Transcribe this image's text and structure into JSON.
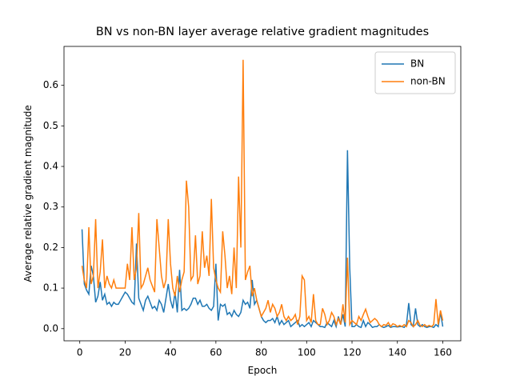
{
  "chart_data": {
    "type": "line",
    "title": "BN vs non-BN layer average relative gradient magnitudes",
    "x_label": "Epoch",
    "y_label": "Average relative gradient magnitude",
    "x": [
      1,
      2,
      3,
      4,
      5,
      6,
      7,
      8,
      9,
      10,
      11,
      12,
      13,
      14,
      15,
      16,
      17,
      18,
      19,
      20,
      21,
      22,
      23,
      24,
      25,
      26,
      27,
      28,
      29,
      30,
      31,
      32,
      33,
      34,
      35,
      36,
      37,
      38,
      39,
      40,
      41,
      42,
      43,
      44,
      45,
      46,
      47,
      48,
      49,
      50,
      51,
      52,
      53,
      54,
      55,
      56,
      57,
      58,
      59,
      60,
      61,
      62,
      63,
      64,
      65,
      66,
      67,
      68,
      69,
      70,
      71,
      72,
      73,
      74,
      75,
      76,
      77,
      78,
      79,
      80,
      81,
      82,
      83,
      84,
      85,
      86,
      87,
      88,
      89,
      90,
      91,
      92,
      93,
      94,
      95,
      96,
      97,
      98,
      99,
      100,
      101,
      102,
      103,
      104,
      105,
      106,
      107,
      108,
      109,
      110,
      111,
      112,
      113,
      114,
      115,
      116,
      117,
      118,
      119,
      120,
      121,
      122,
      123,
      124,
      125,
      126,
      127,
      128,
      129,
      130,
      131,
      132,
      133,
      134,
      135,
      136,
      137,
      138,
      139,
      140,
      141,
      142,
      143,
      144,
      145,
      146,
      147,
      148,
      149,
      150,
      151,
      152,
      153,
      154,
      155,
      156,
      157,
      158,
      159,
      160
    ],
    "series": [
      {
        "name": "BN",
        "color": "#1f77b4",
        "values": [
          0.245,
          0.11,
          0.095,
          0.085,
          0.155,
          0.13,
          0.065,
          0.08,
          0.115,
          0.07,
          0.085,
          0.06,
          0.065,
          0.055,
          0.065,
          0.06,
          0.06,
          0.07,
          0.08,
          0.09,
          0.085,
          0.075,
          0.065,
          0.06,
          0.21,
          0.075,
          0.06,
          0.045,
          0.07,
          0.08,
          0.065,
          0.05,
          0.055,
          0.045,
          0.07,
          0.06,
          0.04,
          0.075,
          0.11,
          0.07,
          0.05,
          0.09,
          0.04,
          0.145,
          0.045,
          0.05,
          0.045,
          0.05,
          0.06,
          0.075,
          0.075,
          0.06,
          0.07,
          0.055,
          0.055,
          0.06,
          0.05,
          0.045,
          0.055,
          0.16,
          0.02,
          0.06,
          0.055,
          0.06,
          0.035,
          0.04,
          0.03,
          0.045,
          0.035,
          0.03,
          0.04,
          0.07,
          0.06,
          0.065,
          0.05,
          0.12,
          0.06,
          0.07,
          0.05,
          0.03,
          0.02,
          0.015,
          0.02,
          0.02,
          0.025,
          0.015,
          0.03,
          0.01,
          0.02,
          0.01,
          0.015,
          0.02,
          0.005,
          0.01,
          0.015,
          0.02,
          0.005,
          0.01,
          0.005,
          0.01,
          0.015,
          0.005,
          0.02,
          0.015,
          0.01,
          0.005,
          0.005,
          0.003,
          0.015,
          0.01,
          0.005,
          0.02,
          0.005,
          0.03,
          0.01,
          0.035,
          0.005,
          0.44,
          0.15,
          0.005,
          0.005,
          0.01,
          0.005,
          0.003,
          0.02,
          0.005,
          0.015,
          0.01,
          0.003,
          0.005,
          0.005,
          0.01,
          0.005,
          0.003,
          0.005,
          0.008,
          0.003,
          0.005,
          0.005,
          0.004,
          0.005,
          0.005,
          0.003,
          0.01,
          0.063,
          0.01,
          0.005,
          0.05,
          0.01,
          0.005,
          0.01,
          0.005,
          0.003,
          0.005,
          0.005,
          0.003,
          0.01,
          0.005,
          0.04,
          0.005
        ]
      },
      {
        "name": "non-BN",
        "color": "#ff7f0e",
        "values": [
          0.155,
          0.12,
          0.1,
          0.25,
          0.11,
          0.13,
          0.27,
          0.1,
          0.14,
          0.22,
          0.1,
          0.13,
          0.11,
          0.1,
          0.12,
          0.1,
          0.1,
          0.1,
          0.1,
          0.1,
          0.16,
          0.12,
          0.25,
          0.12,
          0.15,
          0.285,
          0.1,
          0.11,
          0.13,
          0.15,
          0.12,
          0.105,
          0.09,
          0.27,
          0.2,
          0.13,
          0.1,
          0.12,
          0.27,
          0.16,
          0.1,
          0.08,
          0.13,
          0.09,
          0.12,
          0.14,
          0.365,
          0.3,
          0.12,
          0.13,
          0.23,
          0.11,
          0.13,
          0.24,
          0.15,
          0.18,
          0.13,
          0.32,
          0.15,
          0.12,
          0.1,
          0.09,
          0.24,
          0.18,
          0.1,
          0.13,
          0.085,
          0.2,
          0.1,
          0.375,
          0.2,
          0.663,
          0.12,
          0.14,
          0.155,
          0.08,
          0.1,
          0.07,
          0.05,
          0.03,
          0.04,
          0.05,
          0.07,
          0.04,
          0.06,
          0.05,
          0.03,
          0.04,
          0.06,
          0.03,
          0.02,
          0.03,
          0.02,
          0.025,
          0.035,
          0.01,
          0.03,
          0.13,
          0.12,
          0.02,
          0.03,
          0.015,
          0.085,
          0.02,
          0.01,
          0.01,
          0.05,
          0.035,
          0.01,
          0.02,
          0.04,
          0.03,
          0.01,
          0.025,
          0.01,
          0.06,
          0.015,
          0.175,
          0.01,
          0.02,
          0.015,
          0.01,
          0.03,
          0.02,
          0.035,
          0.048,
          0.03,
          0.015,
          0.02,
          0.025,
          0.02,
          0.01,
          0.005,
          0.01,
          0.008,
          0.015,
          0.005,
          0.012,
          0.01,
          0.005,
          0.008,
          0.005,
          0.01,
          0.005,
          0.02,
          0.015,
          0.005,
          0.01,
          0.02,
          0.008,
          0.005,
          0.01,
          0.005,
          0.008,
          0.005,
          0.01,
          0.073,
          0.01,
          0.045,
          0.02
        ]
      }
    ],
    "xlim": [
      -6.95,
      167.95
    ],
    "ylim": [
      -0.03,
      0.696
    ],
    "xticks": [
      0,
      20,
      40,
      60,
      80,
      100,
      120,
      140,
      160
    ],
    "yticks": [
      {
        "value": 0,
        "label": "0.0"
      },
      0.1,
      0.2,
      0.3,
      0.4,
      0.5,
      0.6
    ],
    "legend": "upper right",
    "grid": false
  }
}
